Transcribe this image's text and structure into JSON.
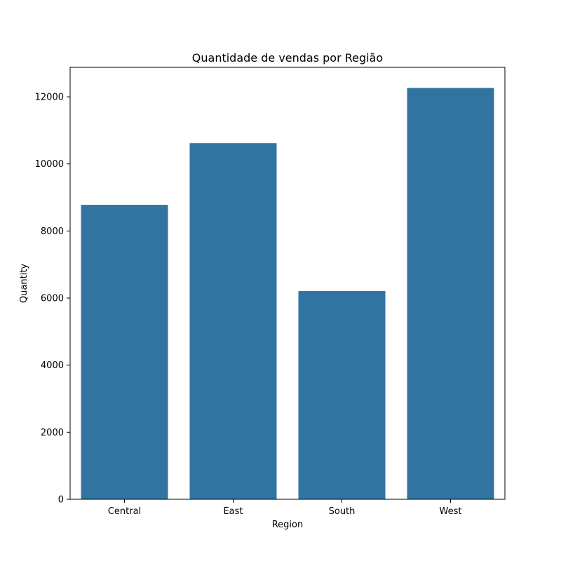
{
  "chart_data": {
    "type": "bar",
    "title": "Quantidade de vendas por Região",
    "xlabel": "Region",
    "ylabel": "Quantity",
    "categories": [
      "Central",
      "East",
      "South",
      "West"
    ],
    "values": [
      8780,
      10618,
      6209,
      12266
    ],
    "ylim": [
      0,
      12880
    ],
    "yticks": [
      0,
      2000,
      4000,
      6000,
      8000,
      10000,
      12000
    ],
    "ytick_labels": [
      "0",
      "2000",
      "4000",
      "6000",
      "8000",
      "10000",
      "12000"
    ],
    "grid": false,
    "legend": "none",
    "bar_color": "#3274a1"
  }
}
